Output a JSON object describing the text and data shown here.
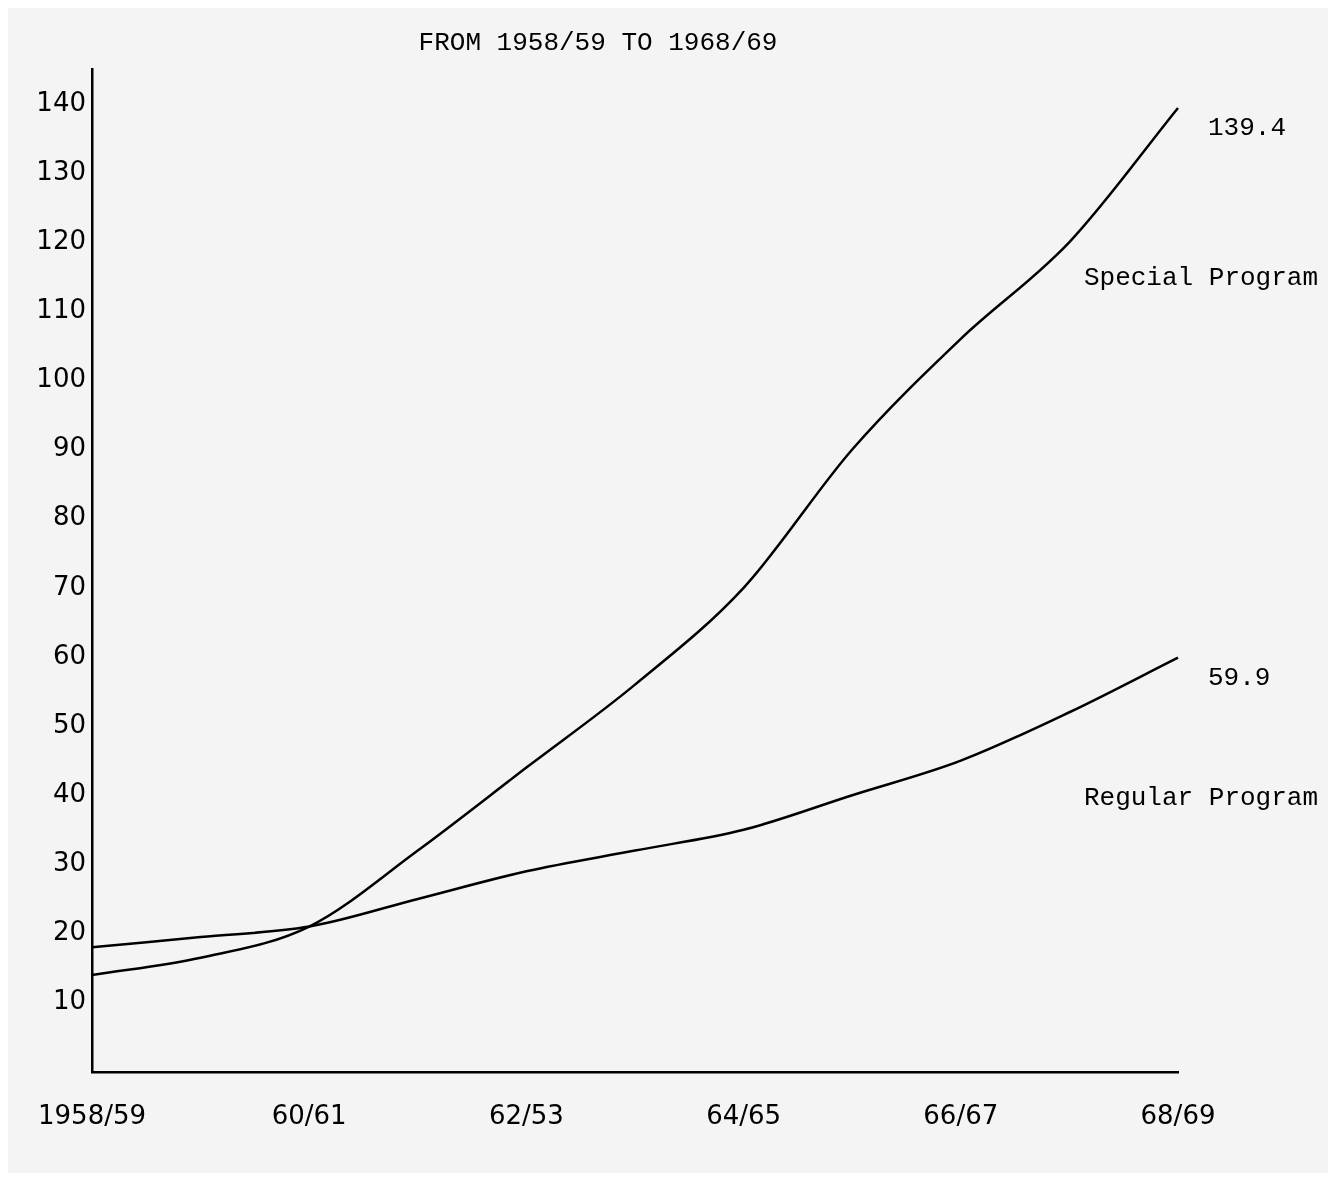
{
  "chart_data": {
    "type": "line",
    "title": "FROM 1958/59 TO 1968/69",
    "categories": [
      "1958/59",
      null,
      "60/61",
      null,
      "62/53",
      null,
      "64/65",
      null,
      "66/67",
      null,
      "68/69"
    ],
    "series": [
      {
        "name": "Special Program",
        "color": "#000000",
        "values": [
          14,
          16.5,
          21,
          32,
          44,
          56,
          70,
          90,
          106,
          120,
          139.4
        ],
        "value_labels": [
          null,
          null,
          null,
          null,
          null,
          null,
          null,
          null,
          null,
          null,
          "139.4"
        ]
      },
      {
        "name": "Regular Program",
        "color": "#000000",
        "values": [
          18,
          19.5,
          21,
          25,
          29,
          32,
          35,
          40,
          45,
          52,
          59.9
        ],
        "value_labels": [
          null,
          null,
          null,
          null,
          null,
          null,
          null,
          null,
          null,
          null,
          "59.9"
        ]
      }
    ],
    "ylim": [
      0,
      145
    ],
    "yticks": [
      10,
      20,
      30,
      40,
      50,
      60,
      70,
      80,
      90,
      100,
      110,
      120,
      130,
      140
    ],
    "grid": false,
    "legend": false,
    "marker": "none",
    "line_style": "solid"
  }
}
